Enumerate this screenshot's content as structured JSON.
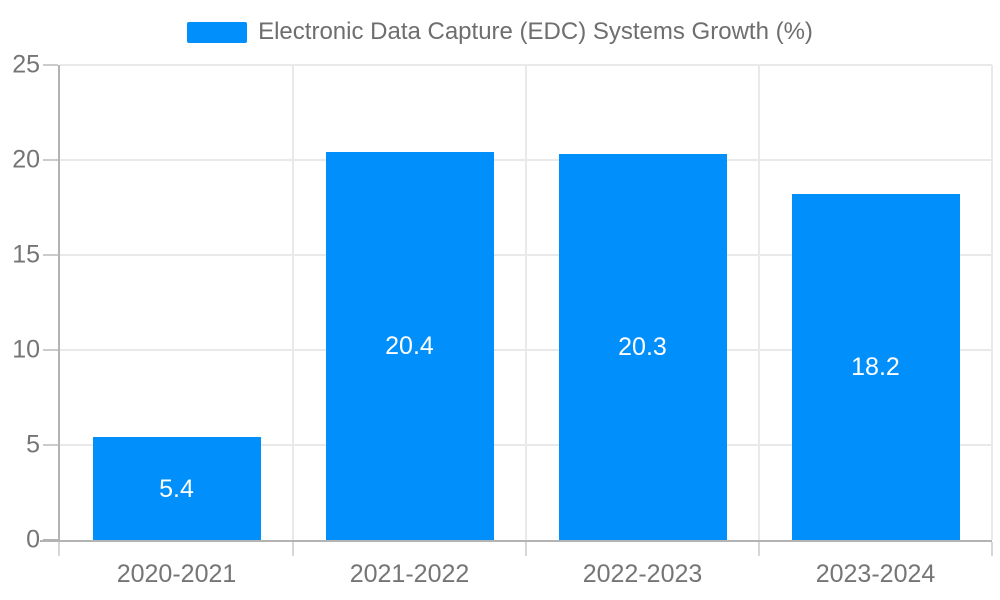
{
  "legend": {
    "label": "Electronic Data Capture (EDC) Systems Growth (%)",
    "swatch_color": "#008FFB"
  },
  "chart_data": {
    "type": "bar",
    "title": "Electronic Data Capture (EDC) Systems Growth (%)",
    "categories": [
      "2020-2021",
      "2021-2022",
      "2022-2023",
      "2023-2024"
    ],
    "values": [
      5.4,
      20.4,
      20.3,
      18.2
    ],
    "data_labels": [
      "5.4",
      "20.4",
      "20.3",
      "18.2"
    ],
    "xlabel": "",
    "ylabel": "",
    "ylim": [
      0,
      25
    ],
    "yticks": [
      0,
      5,
      10,
      15,
      20,
      25
    ],
    "grid": true,
    "legend_position": "top",
    "bar_color": "#008FFB",
    "data_label_color": "#FFFFFF"
  },
  "colors": {
    "bar": "#008FFB",
    "data_label": "#FFFFFF",
    "legend_text": "#6E6E6E",
    "axis_text": "#757575",
    "axis_line": "#B3B3B3",
    "tick_mark": "#CCCCCC",
    "gridline": "#E9E9E9",
    "background": "#FFFFFF"
  }
}
